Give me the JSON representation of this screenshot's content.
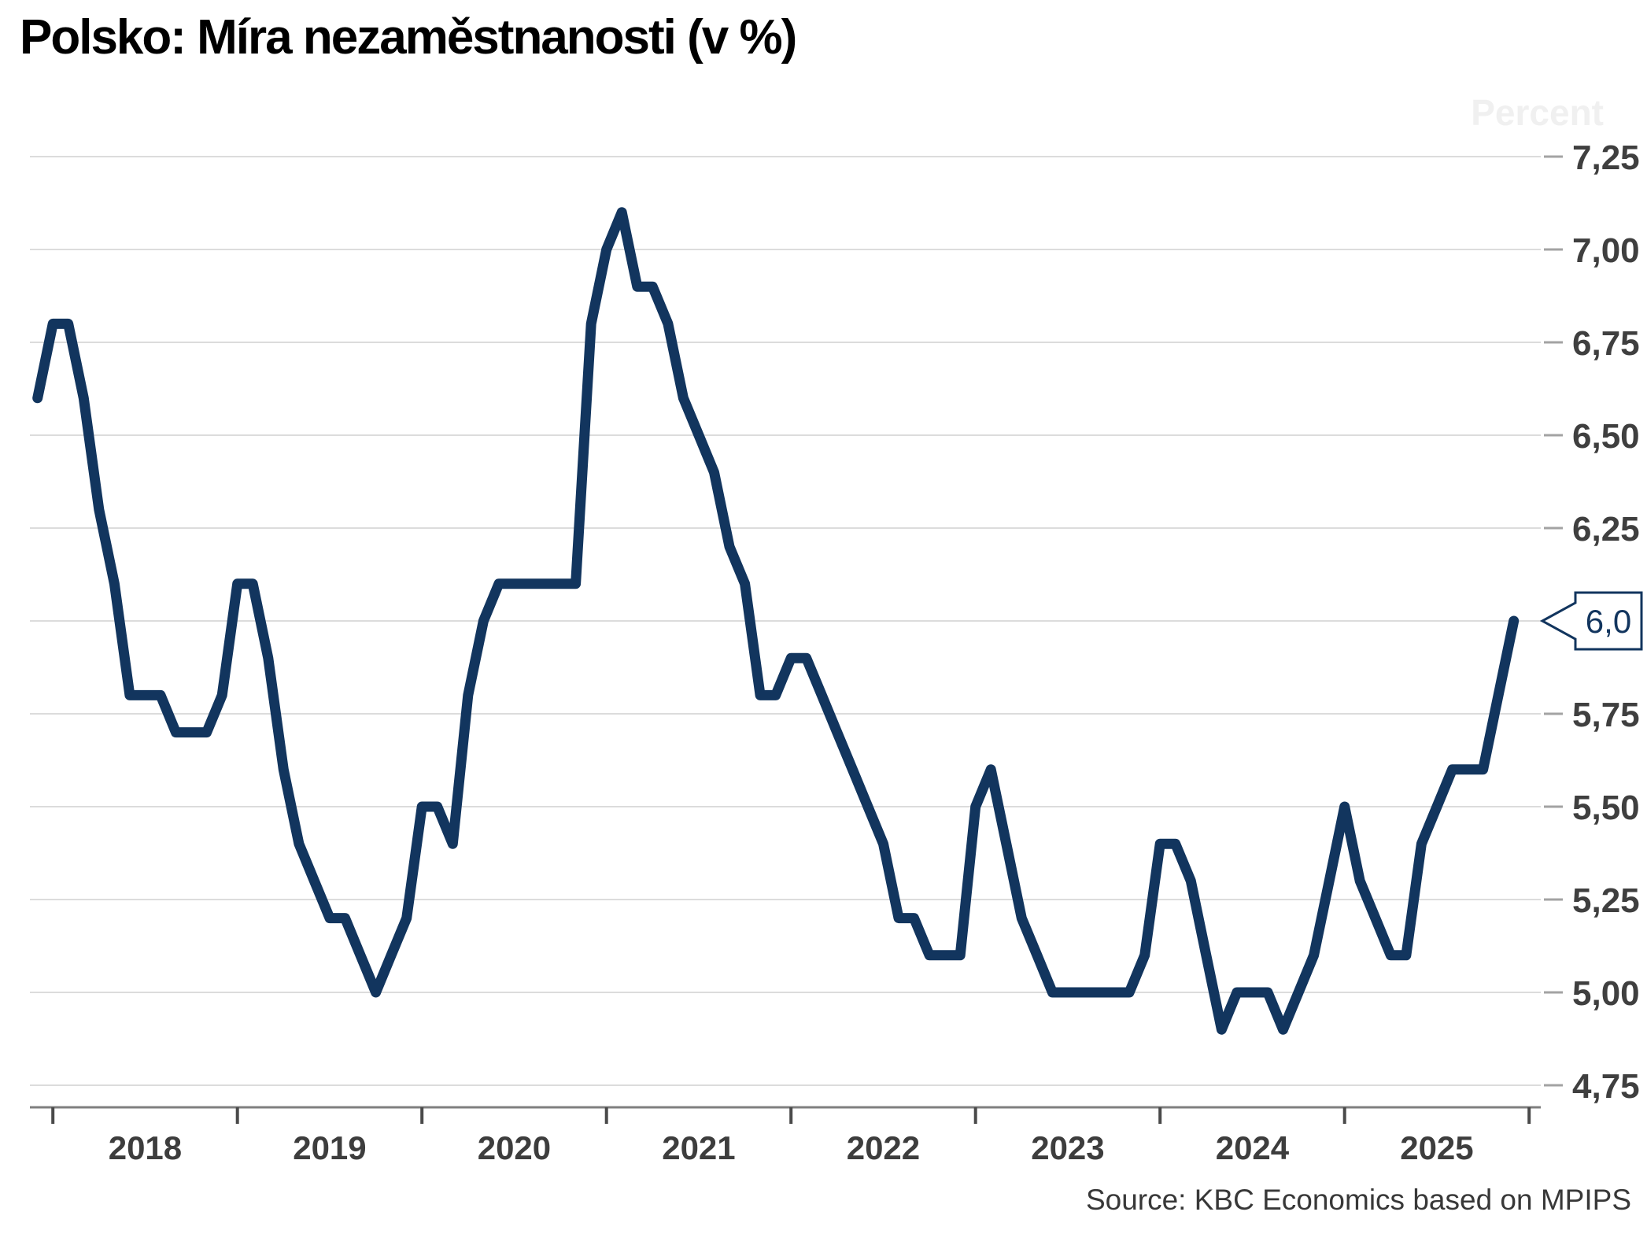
{
  "title": "Polsko: Míra nezaměstnanosti (v %)",
  "watermark": "Percent",
  "source": "Source: KBC Economics based on MPIPS",
  "chart_data": {
    "type": "line",
    "title": "Polsko: Míra nezaměstnanosti (v %)",
    "ylabel": "Percent",
    "legend_position": "none",
    "grid": true,
    "y_axis": {
      "min": 4.75,
      "max": 7.25,
      "step": 0.25,
      "tick_labels_top_to_bottom": [
        "7,25",
        "7,00",
        "6,75",
        "6,50",
        "6,25",
        "",
        "5,75",
        "5,50",
        "5,25",
        "5,00",
        "4,75"
      ]
    },
    "x_axis": {
      "year_labels": [
        "2018",
        "2019",
        "2020",
        "2021",
        "2022",
        "2023",
        "2024",
        "2025"
      ]
    },
    "callout": {
      "label": "6,0",
      "value": 6.0
    },
    "series": [
      {
        "name": "Míra nezaměstnanosti (v %)",
        "start": "2017-12",
        "frequency": "monthly",
        "values": [
          6.6,
          6.8,
          6.8,
          6.6,
          6.3,
          6.1,
          5.8,
          5.8,
          5.8,
          5.7,
          5.7,
          5.7,
          5.8,
          6.1,
          6.1,
          5.9,
          5.6,
          5.4,
          5.3,
          5.2,
          5.2,
          5.1,
          5.0,
          5.1,
          5.2,
          5.5,
          5.5,
          5.4,
          5.8,
          6.0,
          6.1,
          6.1,
          6.1,
          6.1,
          6.1,
          6.1,
          6.8,
          7.0,
          7.1,
          6.9,
          6.9,
          6.8,
          6.6,
          6.5,
          6.4,
          6.2,
          6.1,
          5.8,
          5.8,
          5.9,
          5.9,
          5.8,
          5.7,
          5.6,
          5.5,
          5.4,
          5.2,
          5.2,
          5.1,
          5.1,
          5.1,
          5.5,
          5.6,
          5.4,
          5.2,
          5.1,
          5.0,
          5.0,
          5.0,
          5.0,
          5.0,
          5.0,
          5.1,
          5.4,
          5.4,
          5.3,
          5.1,
          4.9,
          5.0,
          5.0,
          5.0,
          4.9,
          5.0,
          5.1,
          5.3,
          5.5,
          5.3,
          5.2,
          5.1,
          5.1,
          5.4,
          5.5,
          5.6,
          5.6,
          5.6,
          5.8,
          6.0
        ]
      }
    ],
    "colors": {
      "line": "#12355e",
      "grid": "#dcdcdc",
      "axis_line": "#7f7f7f",
      "axis_tick": "#4a4a4a",
      "y_tick_dash": "#a3a3a3",
      "tick_label": "#3f3f3f",
      "title": "#000000",
      "watermark": "#f0f0f0",
      "source": "#383838",
      "background": "#ffffff"
    }
  }
}
